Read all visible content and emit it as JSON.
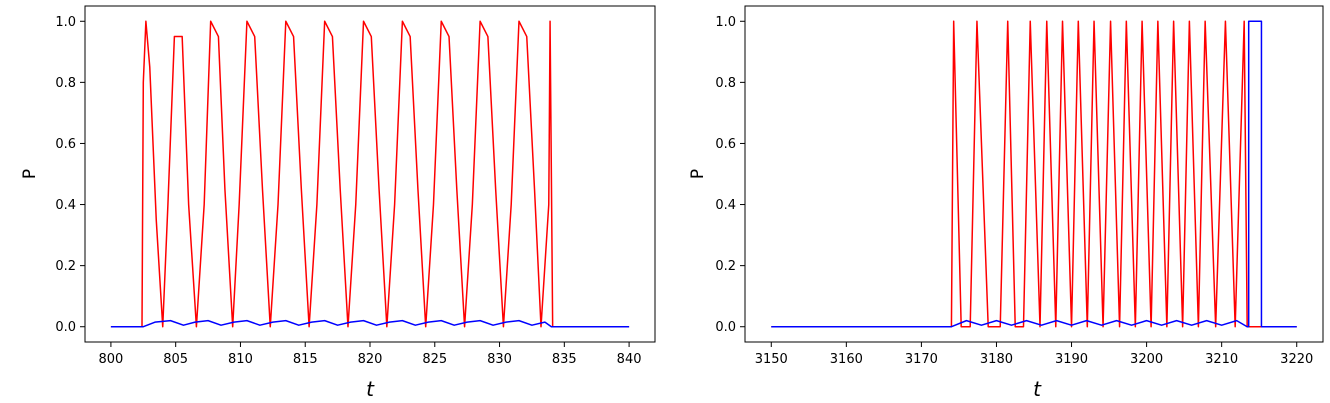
{
  "chart_data": [
    {
      "type": "line",
      "title": "",
      "xlabel": "t",
      "ylabel": "P",
      "xlim": [
        798,
        842
      ],
      "ylim": [
        -0.05,
        1.05
      ],
      "xticks": [
        800,
        805,
        810,
        815,
        820,
        825,
        830,
        835,
        840
      ],
      "yticks": [
        0.0,
        0.2,
        0.4,
        0.6,
        0.8,
        1.0
      ],
      "grid": false,
      "colors": {
        "red": "#ff0000",
        "blue": "#0000ff"
      },
      "series": [
        {
          "color": "red",
          "x": [
            800.0,
            802.4,
            802.5,
            802.7,
            803.0,
            803.5,
            804.0,
            804.4,
            804.9,
            805.5,
            806.0,
            806.6,
            807.2,
            807.7,
            808.3,
            808.8,
            809.4,
            809.9,
            810.5,
            811.1,
            811.7,
            812.3,
            812.9,
            813.5,
            814.1,
            814.7,
            815.3,
            815.9,
            816.5,
            817.1,
            817.7,
            818.3,
            818.9,
            819.5,
            820.1,
            820.7,
            821.3,
            821.9,
            822.5,
            823.1,
            823.7,
            824.3,
            824.9,
            825.5,
            826.1,
            826.7,
            827.3,
            827.9,
            828.5,
            829.1,
            829.7,
            830.3,
            830.9,
            831.5,
            832.1,
            832.7,
            833.2,
            833.8,
            833.9,
            834.1,
            840.0
          ],
          "y": [
            0.0,
            0.0,
            0.8,
            1.0,
            0.85,
            0.35,
            0.0,
            0.4,
            0.95,
            0.95,
            0.4,
            0.0,
            0.4,
            1.0,
            0.95,
            0.45,
            0.0,
            0.4,
            1.0,
            0.95,
            0.45,
            0.0,
            0.4,
            1.0,
            0.95,
            0.45,
            0.0,
            0.4,
            1.0,
            0.95,
            0.45,
            0.0,
            0.4,
            1.0,
            0.95,
            0.45,
            0.0,
            0.4,
            1.0,
            0.95,
            0.45,
            0.0,
            0.4,
            1.0,
            0.95,
            0.45,
            0.0,
            0.4,
            1.0,
            0.95,
            0.45,
            0.0,
            0.4,
            1.0,
            0.95,
            0.45,
            0.0,
            0.4,
            1.0,
            0.0,
            0.0
          ]
        },
        {
          "color": "blue",
          "x": [
            800.0,
            802.5,
            803.4,
            804.6,
            805.6,
            806.5,
            807.5,
            808.5,
            809.5,
            810.5,
            811.5,
            812.5,
            813.5,
            814.5,
            815.5,
            816.5,
            817.5,
            818.5,
            819.5,
            820.5,
            821.5,
            822.5,
            823.5,
            824.5,
            825.5,
            826.5,
            827.5,
            828.5,
            829.5,
            830.5,
            831.5,
            832.5,
            833.5,
            834.0,
            840.0
          ],
          "y": [
            0.0,
            0.0,
            0.015,
            0.02,
            0.005,
            0.015,
            0.02,
            0.005,
            0.015,
            0.02,
            0.005,
            0.015,
            0.02,
            0.005,
            0.015,
            0.02,
            0.005,
            0.015,
            0.02,
            0.005,
            0.015,
            0.02,
            0.005,
            0.015,
            0.02,
            0.005,
            0.015,
            0.02,
            0.005,
            0.015,
            0.02,
            0.005,
            0.015,
            0.0,
            0.0
          ]
        }
      ]
    },
    {
      "type": "line",
      "title": "",
      "xlabel": "t",
      "ylabel": "P",
      "xlim": [
        3146.5,
        3223.5
      ],
      "ylim": [
        -0.05,
        1.05
      ],
      "xticks": [
        3150,
        3160,
        3170,
        3180,
        3190,
        3200,
        3210,
        3220
      ],
      "yticks": [
        0.0,
        0.2,
        0.4,
        0.6,
        0.8,
        1.0
      ],
      "grid": false,
      "colors": {
        "red": "#ff0000",
        "blue": "#0000ff"
      },
      "series": [
        {
          "color": "red",
          "x": [
            3150.0,
            3174.0,
            3174.3,
            3175.3,
            3176.5,
            3177.4,
            3178.9,
            3180.5,
            3181.5,
            3182.5,
            3183.6,
            3184.5,
            3185.8,
            3186.7,
            3187.9,
            3188.8,
            3190.0,
            3190.9,
            3192.1,
            3193.0,
            3194.2,
            3195.2,
            3196.4,
            3197.3,
            3198.5,
            3199.4,
            3200.6,
            3201.5,
            3202.7,
            3203.6,
            3204.8,
            3205.7,
            3206.9,
            3207.8,
            3209.2,
            3210.5,
            3211.8,
            3213.0,
            3213.4,
            3215.4,
            3220.0
          ],
          "y": [
            0.0,
            0.0,
            1.0,
            0.0,
            0.0,
            1.0,
            0.0,
            0.0,
            1.0,
            0.0,
            0.0,
            1.0,
            0.0,
            1.0,
            0.0,
            1.0,
            0.0,
            1.0,
            0.0,
            1.0,
            0.0,
            1.0,
            0.0,
            1.0,
            0.0,
            1.0,
            0.0,
            1.0,
            0.0,
            1.0,
            0.0,
            1.0,
            0.0,
            1.0,
            0.0,
            1.0,
            0.0,
            1.0,
            0.0,
            0.0,
            0.0
          ]
        },
        {
          "color": "blue",
          "x": [
            3150.0,
            3174.0,
            3176.0,
            3178.0,
            3180.0,
            3182.0,
            3184.0,
            3186.0,
            3188.0,
            3190.0,
            3192.0,
            3194.0,
            3196.0,
            3198.0,
            3200.0,
            3202.0,
            3204.0,
            3206.0,
            3208.0,
            3210.0,
            3212.0,
            3213.4,
            3213.6,
            3213.6,
            3215.3,
            3215.3,
            3220.0
          ],
          "y": [
            0.0,
            0.0,
            0.02,
            0.005,
            0.02,
            0.005,
            0.02,
            0.005,
            0.02,
            0.005,
            0.02,
            0.005,
            0.02,
            0.005,
            0.02,
            0.005,
            0.02,
            0.005,
            0.02,
            0.005,
            0.02,
            0.0,
            0.0,
            1.0,
            1.0,
            0.0,
            0.0
          ]
        }
      ]
    }
  ]
}
